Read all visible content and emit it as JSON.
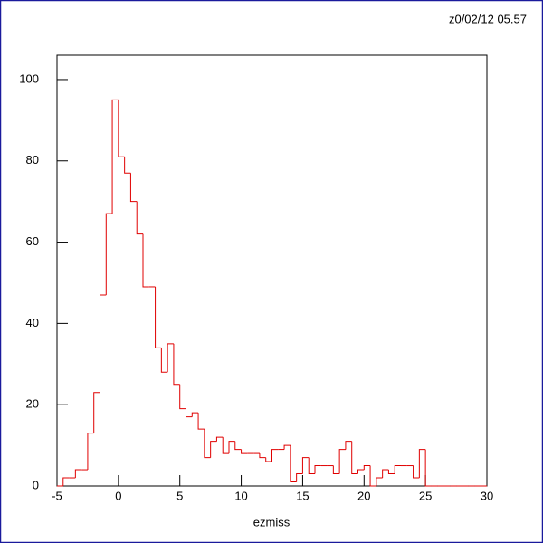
{
  "chart_data": {
    "type": "histogram",
    "stamp": "z0/02/12  05.57",
    "x_label": "ezmiss",
    "color": "#e00000",
    "bins": [
      -5,
      -4.5,
      -4,
      -3.5,
      -3,
      -2.5,
      -2,
      -1.5,
      -1,
      -0.5,
      0,
      0.5,
      1,
      1.5,
      2,
      2.5,
      3,
      3.5,
      4,
      4.5,
      5,
      5.5,
      6,
      6.5,
      7,
      7.5,
      8,
      8.5,
      9,
      9.5,
      10,
      10.5,
      11,
      11.5,
      12,
      12.5,
      13,
      13.5,
      14,
      14.5,
      15,
      15.5,
      16,
      16.5,
      17,
      17.5,
      18,
      18.5,
      19,
      19.5,
      20,
      20.5,
      21,
      21.5,
      22,
      22.5,
      23,
      23.5,
      24,
      24.5,
      25,
      25.5,
      26,
      26.5,
      27,
      27.5,
      28,
      28.5,
      29,
      29.5,
      30
    ],
    "values": [
      0,
      2,
      2,
      4,
      4,
      13,
      23,
      47,
      67,
      95,
      81,
      77,
      70,
      62,
      49,
      49,
      34,
      28,
      35,
      25,
      19,
      17,
      18,
      14,
      7,
      11,
      12,
      8,
      11,
      9,
      8,
      8,
      8,
      7,
      6,
      9,
      9,
      10,
      1,
      3,
      7,
      3,
      5,
      5,
      5,
      3,
      9,
      11,
      3,
      4,
      5,
      0,
      2,
      4,
      3,
      5,
      5,
      5,
      2,
      9,
      0,
      0,
      0,
      0,
      0,
      0,
      0,
      0,
      0,
      0
    ],
    "xlim": [
      -5,
      30
    ],
    "xticks": [
      -5,
      0,
      5,
      10,
      15,
      20,
      25,
      30
    ],
    "ylim": [
      0,
      106
    ],
    "yticks": [
      0,
      20,
      40,
      60,
      80,
      100
    ]
  }
}
